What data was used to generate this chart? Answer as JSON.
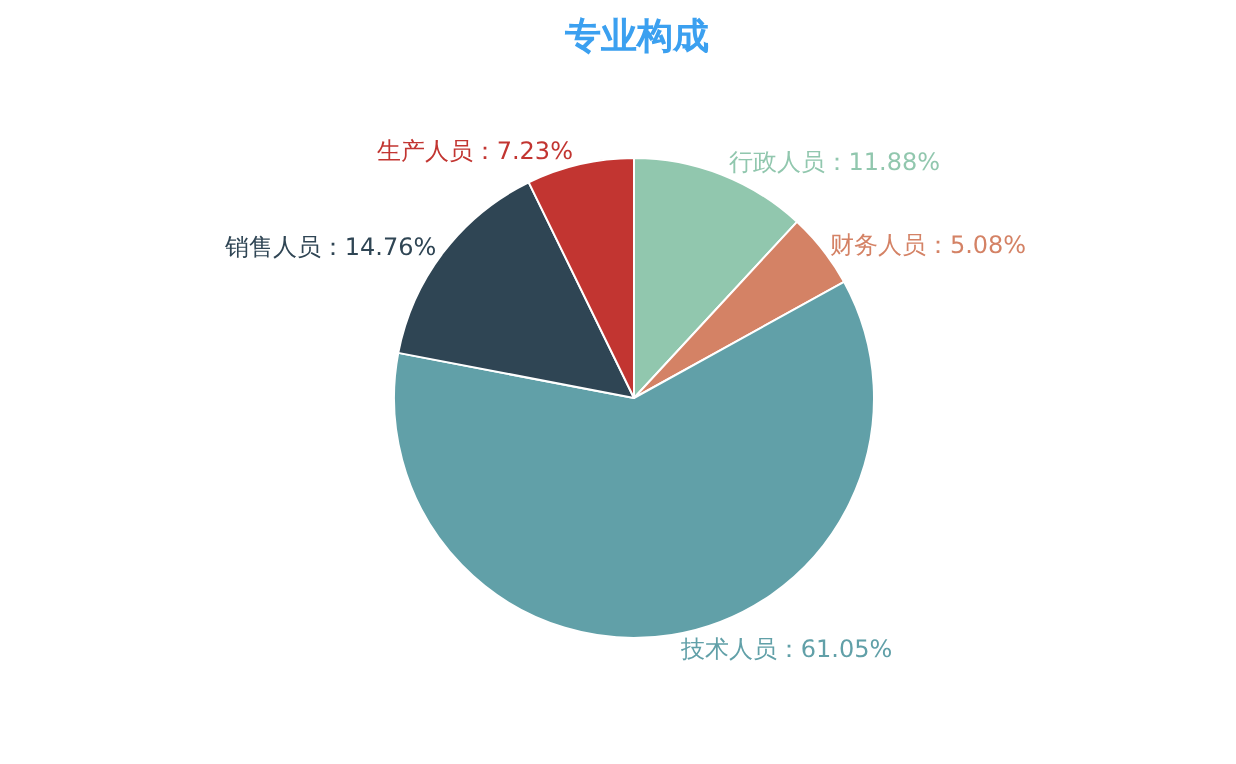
{
  "chart_data": {
    "type": "pie",
    "title": "专业构成",
    "categories": [
      "行政人员：11.88%",
      "财务人员：5.08%",
      "技术人员：61.05%",
      "销售人员：14.76%",
      "生产人员：7.23%"
    ],
    "values": [
      11.88,
      5.08,
      61.05,
      14.76,
      7.23
    ],
    "colors": [
      "#91c7ae",
      "#d48265",
      "#61a0a8",
      "#2f4554",
      "#c23531"
    ],
    "legend": false
  }
}
